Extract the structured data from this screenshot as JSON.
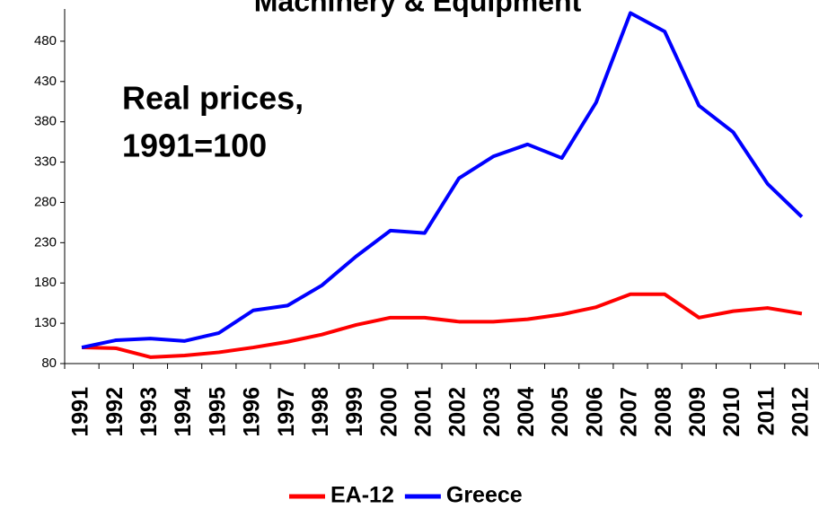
{
  "chart_data": {
    "type": "line",
    "title": "Machinery & Equipment",
    "annotation": [
      "Real prices,",
      "1991=100"
    ],
    "categories": [
      "1991",
      "1992",
      "1993",
      "1994",
      "1995",
      "1996",
      "1997",
      "1998",
      "1999",
      "2000",
      "2001",
      "2002",
      "2003",
      "2004",
      "2005",
      "2006",
      "2007",
      "2008",
      "2009",
      "2010",
      "2011",
      "2012"
    ],
    "series": [
      {
        "name": "EA-12",
        "color": "#ff0000",
        "values": [
          100,
          99,
          88,
          90,
          94,
          100,
          107,
          116,
          128,
          137,
          137,
          132,
          132,
          135,
          141,
          150,
          166,
          166,
          137,
          145,
          149,
          142
        ]
      },
      {
        "name": "Greece",
        "color": "#0000ff",
        "values": [
          100,
          109,
          111,
          108,
          118,
          146,
          152,
          177,
          213,
          245,
          242,
          310,
          337,
          352,
          335,
          404,
          515,
          492,
          400,
          367,
          303,
          262
        ]
      }
    ],
    "ylim": [
      80,
      520
    ],
    "yticks": [
      80,
      130,
      180,
      230,
      280,
      330,
      380,
      430,
      480
    ]
  }
}
